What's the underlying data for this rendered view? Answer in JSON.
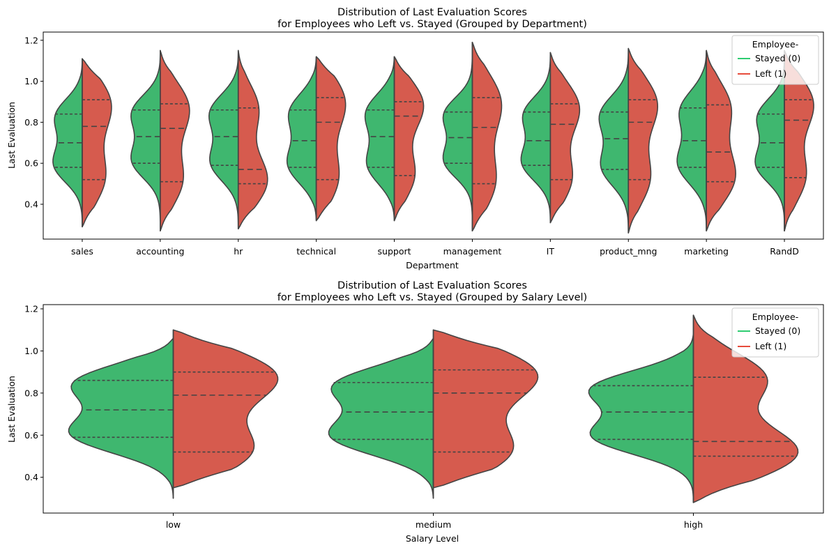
{
  "chart_data": [
    {
      "type": "violin",
      "title": "Distribution of Last Evaluation Scores\nfor Employees who Left vs. Stayed (Grouped by Department)",
      "xlabel": "Department",
      "ylabel": "Last Evaluation",
      "ylim": [
        0.23,
        1.24
      ],
      "yticks": [
        0.4,
        0.6,
        0.8,
        1.0,
        1.2
      ],
      "categories": [
        "sales",
        "accounting",
        "hr",
        "technical",
        "support",
        "management",
        "IT",
        "product_mng",
        "marketing",
        "RandD"
      ],
      "legend": {
        "title": "Employee-",
        "position": "top-right",
        "entries": [
          "Stayed (0)",
          "Left (1)"
        ]
      },
      "colors": {
        "stayed": "#3fb76f",
        "left": "#d65b4e"
      },
      "series": [
        {
          "name": "Stayed (0)",
          "quartiles": [
            [
              0.58,
              0.7,
              0.84
            ],
            [
              0.6,
              0.73,
              0.86
            ],
            [
              0.59,
              0.73,
              0.86
            ],
            [
              0.58,
              0.71,
              0.86
            ],
            [
              0.58,
              0.73,
              0.86
            ],
            [
              0.6,
              0.725,
              0.85
            ],
            [
              0.59,
              0.71,
              0.85
            ],
            [
              0.57,
              0.72,
              0.85
            ],
            [
              0.58,
              0.71,
              0.87
            ],
            [
              0.58,
              0.7,
              0.84
            ]
          ],
          "range": [
            [
              0.29,
              1.11
            ],
            [
              0.27,
              1.15
            ],
            [
              0.28,
              1.15
            ],
            [
              0.32,
              1.12
            ],
            [
              0.32,
              1.12
            ],
            [
              0.27,
              1.19
            ],
            [
              0.31,
              1.14
            ],
            [
              0.26,
              1.16
            ],
            [
              0.27,
              1.15
            ],
            [
              0.27,
              1.15
            ]
          ]
        },
        {
          "name": "Left (1)",
          "quartiles": [
            [
              0.52,
              0.78,
              0.91
            ],
            [
              0.51,
              0.77,
              0.89
            ],
            [
              0.5,
              0.57,
              0.87
            ],
            [
              0.52,
              0.8,
              0.92
            ],
            [
              0.54,
              0.83,
              0.9
            ],
            [
              0.5,
              0.775,
              0.92
            ],
            [
              0.52,
              0.79,
              0.89
            ],
            [
              0.52,
              0.8,
              0.91
            ],
            [
              0.51,
              0.655,
              0.885
            ],
            [
              0.53,
              0.81,
              0.91
            ]
          ],
          "range": [
            [
              0.29,
              1.11
            ],
            [
              0.27,
              1.15
            ],
            [
              0.28,
              1.15
            ],
            [
              0.32,
              1.12
            ],
            [
              0.32,
              1.12
            ],
            [
              0.27,
              1.19
            ],
            [
              0.31,
              1.14
            ],
            [
              0.26,
              1.16
            ],
            [
              0.27,
              1.15
            ],
            [
              0.27,
              1.15
            ]
          ]
        }
      ]
    },
    {
      "type": "violin",
      "title": "Distribution of Last Evaluation Scores\nfor Employees who Left vs. Stayed (Grouped by Salary Level)",
      "xlabel": "Salary Level",
      "ylabel": "Last Evaluation",
      "ylim": [
        0.23,
        1.22
      ],
      "yticks": [
        0.4,
        0.6,
        0.8,
        1.0,
        1.2
      ],
      "categories": [
        "low",
        "medium",
        "high"
      ],
      "legend": {
        "title": "Employee-",
        "position": "top-right",
        "entries": [
          "Stayed (0)",
          "Left (1)"
        ]
      },
      "colors": {
        "stayed": "#3fb76f",
        "left": "#d65b4e"
      },
      "series": [
        {
          "name": "Stayed (0)",
          "quartiles": [
            [
              0.59,
              0.72,
              0.86
            ],
            [
              0.58,
              0.71,
              0.85
            ],
            [
              0.58,
              0.71,
              0.835
            ]
          ],
          "range": [
            [
              0.3,
              1.06
            ],
            [
              0.3,
              1.06
            ],
            [
              0.28,
              1.08
            ]
          ]
        },
        {
          "name": "Left (1)",
          "quartiles": [
            [
              0.52,
              0.79,
              0.9
            ],
            [
              0.52,
              0.8,
              0.91
            ],
            [
              0.5,
              0.57,
              0.875
            ]
          ],
          "range": [
            [
              0.35,
              1.1
            ],
            [
              0.35,
              1.1
            ],
            [
              0.28,
              1.17
            ]
          ]
        }
      ]
    }
  ]
}
